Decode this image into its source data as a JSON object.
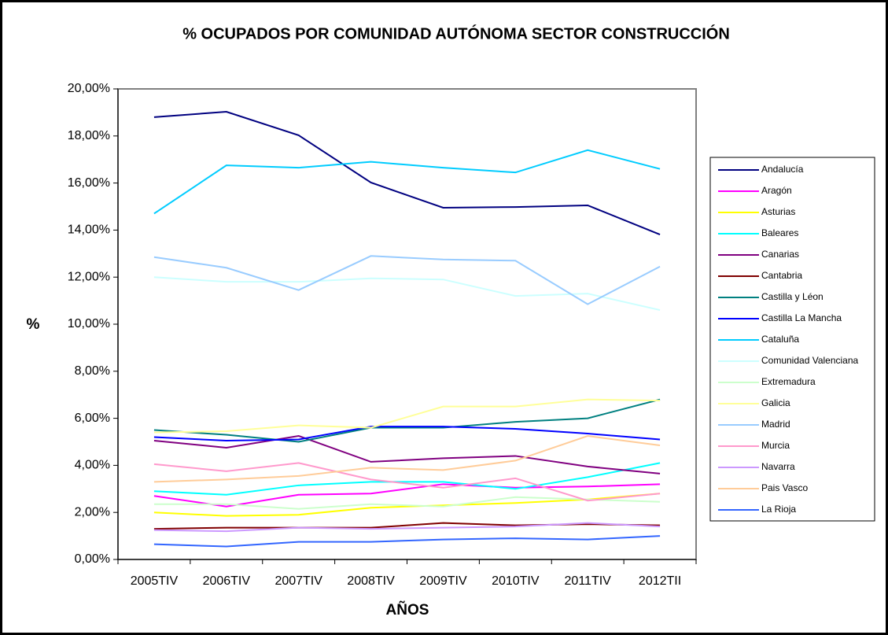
{
  "chart_data": {
    "type": "line",
    "title": "% OCUPADOS POR COMUNIDAD AUTÓNOMA SECTOR CONSTRUCCIÓN",
    "x_label": "AÑOS",
    "y_label": "%",
    "categories": [
      "2005TIV",
      "2006TIV",
      "2007TIV",
      "2008TIV",
      "2009TIV",
      "2010TIV",
      "2011TIV",
      "2012TII"
    ],
    "ylim": [
      0,
      20
    ],
    "yticks": [
      {
        "value": 0,
        "label": "0,00%"
      },
      {
        "value": 2,
        "label": "2,00%"
      },
      {
        "value": 4,
        "label": "4,00%"
      },
      {
        "value": 6,
        "label": "6,00%"
      },
      {
        "value": 8,
        "label": "8,00%"
      },
      {
        "value": 10,
        "label": "10,00%"
      },
      {
        "value": 12,
        "label": "12,00%"
      },
      {
        "value": 14,
        "label": "14,00%"
      },
      {
        "value": 16,
        "label": "16,00%"
      },
      {
        "value": 18,
        "label": "18,00%"
      },
      {
        "value": 20,
        "label": "20,00%"
      }
    ],
    "grid": false,
    "legend": "right",
    "series": [
      {
        "name": "Andalucía",
        "color": "#000080",
        "values": [
          18.8,
          19.03,
          18.03,
          16.02,
          14.95,
          14.98,
          15.05,
          13.81
        ]
      },
      {
        "name": "Aragón",
        "color": "#ff00ff",
        "values": [
          2.7,
          2.25,
          2.75,
          2.8,
          3.2,
          3.05,
          3.1,
          3.2
        ]
      },
      {
        "name": "Asturias",
        "color": "#ffff00",
        "values": [
          2.0,
          1.85,
          1.9,
          2.2,
          2.3,
          2.4,
          2.55,
          2.8
        ]
      },
      {
        "name": "Baleares",
        "color": "#00ffff",
        "values": [
          2.9,
          2.75,
          3.15,
          3.3,
          3.3,
          3.0,
          3.5,
          4.1
        ]
      },
      {
        "name": "Canarias",
        "color": "#800080",
        "values": [
          5.05,
          4.75,
          5.25,
          4.15,
          4.3,
          4.4,
          3.95,
          3.65
        ]
      },
      {
        "name": "Cantabria",
        "color": "#800000",
        "values": [
          1.3,
          1.35,
          1.35,
          1.35,
          1.55,
          1.45,
          1.5,
          1.45
        ]
      },
      {
        "name": "Castilla y Léon",
        "color": "#008080",
        "values": [
          5.5,
          5.3,
          5.0,
          5.6,
          5.6,
          5.85,
          6.0,
          6.8
        ]
      },
      {
        "name": "Castilla La Mancha",
        "color": "#0000ff",
        "values": [
          5.2,
          5.05,
          5.1,
          5.65,
          5.65,
          5.55,
          5.35,
          5.1
        ]
      },
      {
        "name": "Cataluña",
        "color": "#00ccff",
        "values": [
          14.7,
          16.75,
          16.65,
          16.9,
          16.65,
          16.45,
          17.4,
          16.6
        ]
      },
      {
        "name": "Comunidad Valenciana",
        "color": "#ccffff",
        "values": [
          12.0,
          11.8,
          11.8,
          11.95,
          11.9,
          11.2,
          11.3,
          10.6
        ]
      },
      {
        "name": "Extremadura",
        "color": "#ccffcc",
        "values": [
          2.35,
          2.35,
          2.15,
          2.35,
          2.25,
          2.65,
          2.55,
          2.45
        ]
      },
      {
        "name": "Galicia",
        "color": "#ffff99",
        "values": [
          5.4,
          5.45,
          5.7,
          5.6,
          6.5,
          6.5,
          6.8,
          6.75
        ]
      },
      {
        "name": "Madrid",
        "color": "#99ccff",
        "values": [
          12.85,
          12.4,
          11.45,
          12.9,
          12.75,
          12.7,
          10.85,
          12.45
        ]
      },
      {
        "name": "Murcia",
        "color": "#ff99cc",
        "values": [
          4.05,
          3.75,
          4.1,
          3.4,
          3.05,
          3.45,
          2.5,
          2.8
        ]
      },
      {
        "name": "Navarra",
        "color": "#cc99ff",
        "values": [
          1.25,
          1.2,
          1.35,
          1.3,
          1.35,
          1.4,
          1.55,
          1.4
        ]
      },
      {
        "name": "Pais Vasco",
        "color": "#ffcc99",
        "values": [
          3.3,
          3.4,
          3.55,
          3.9,
          3.8,
          4.2,
          5.25,
          4.85
        ]
      },
      {
        "name": "La Rioja",
        "color": "#3366ff",
        "values": [
          0.65,
          0.55,
          0.75,
          0.75,
          0.85,
          0.9,
          0.85,
          1.0
        ]
      }
    ]
  }
}
